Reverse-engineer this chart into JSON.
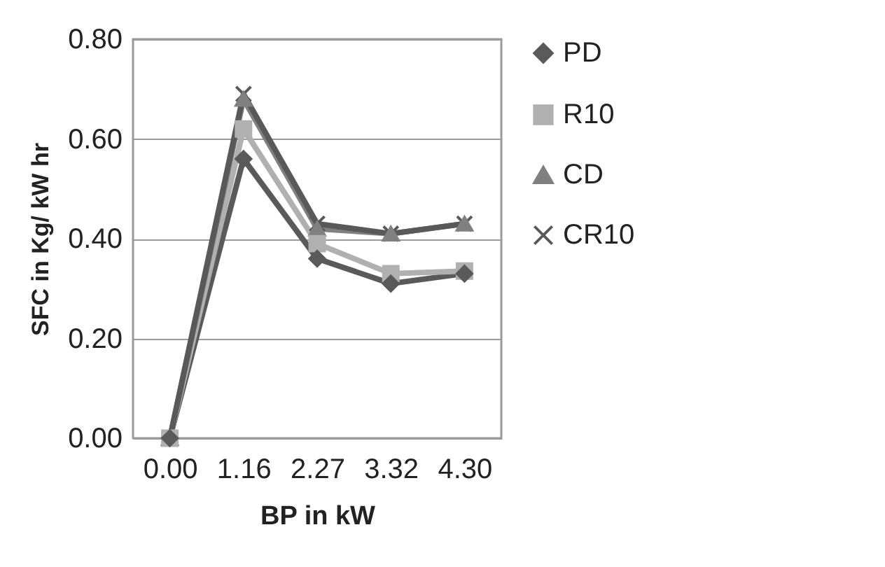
{
  "chart_data": {
    "type": "line",
    "xlabel": "BP in kW",
    "ylabel": "SFC in Kg/ kW hr",
    "categories": [
      "0.00",
      "1.16",
      "2.27",
      "3.32",
      "4.30"
    ],
    "series": [
      {
        "name": "PD",
        "color": "#5a5a5a",
        "marker": "diamond",
        "values": [
          0,
          0.56,
          0.36,
          0.31,
          0.33
        ]
      },
      {
        "name": "R10",
        "color": "#b0b0b0",
        "marker": "square",
        "values": [
          0,
          0.62,
          0.39,
          0.33,
          0.335
        ]
      },
      {
        "name": "CD",
        "color": "#808080",
        "marker": "triangle",
        "values": [
          0,
          0.68,
          0.42,
          0.41,
          0.43
        ]
      },
      {
        "name": "CR10",
        "color": "#595959",
        "marker": "cross",
        "values": [
          0,
          0.69,
          0.43,
          0.41,
          0.43
        ]
      }
    ],
    "ylim": [
      0,
      0.8
    ],
    "yticks": [
      {
        "value": 0,
        "label": "0.00"
      },
      {
        "value": 0.2,
        "label": "0.20"
      },
      {
        "value": 0.4,
        "label": "0.40"
      },
      {
        "value": 0.6,
        "label": "0.60"
      },
      {
        "value": 0.8,
        "label": "0.80"
      }
    ],
    "grid": "y",
    "legend": "right"
  }
}
